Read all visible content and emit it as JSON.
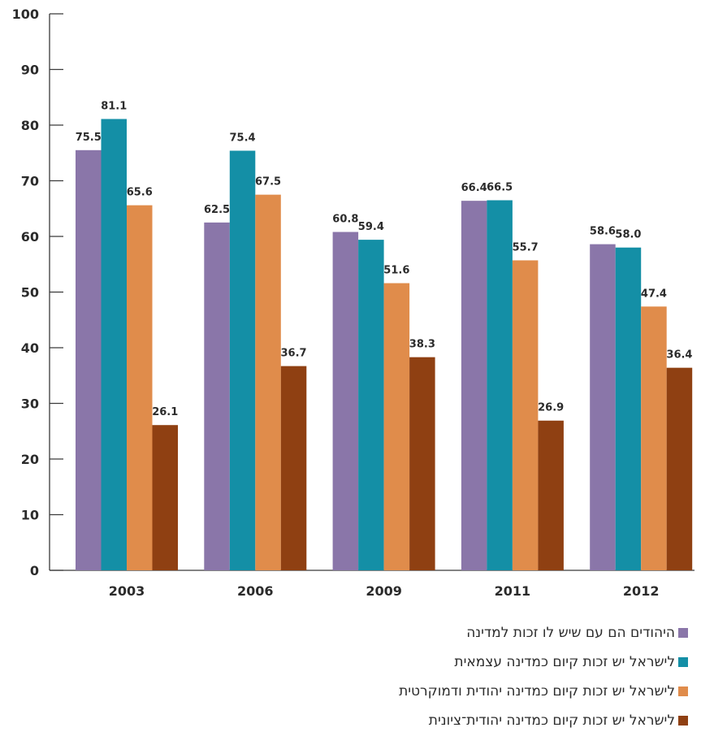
{
  "chart_data": {
    "type": "bar",
    "categories": [
      "2003",
      "2006",
      "2009",
      "2011",
      "2012"
    ],
    "series": [
      {
        "name": "היהודים הם עם שיש לו זכות למדינה",
        "color": "#8a76a9",
        "values": [
          75.5,
          62.5,
          60.8,
          66.4,
          58.6
        ]
      },
      {
        "name": "לישראל יש זכות קיום כמדינה עצמאית",
        "color": "#148fa6",
        "values": [
          81.1,
          75.4,
          59.4,
          66.5,
          58.0
        ]
      },
      {
        "name": "לישראל יש זכות קיום כמדינה יהודית ודמוקרטית",
        "color": "#e08c4b",
        "values": [
          65.6,
          67.5,
          51.6,
          55.7,
          47.4
        ]
      },
      {
        "name": "לישראל יש זכות קיום כמדינה יהודית־ציונית",
        "color": "#8f4012",
        "values": [
          26.1,
          36.7,
          38.3,
          26.9,
          36.4
        ]
      }
    ],
    "yticks": [
      0,
      10,
      20,
      30,
      40,
      50,
      60,
      70,
      80,
      90,
      100
    ],
    "ylim": [
      0,
      100
    ],
    "grid": false,
    "legend_position": "bottom-right"
  }
}
